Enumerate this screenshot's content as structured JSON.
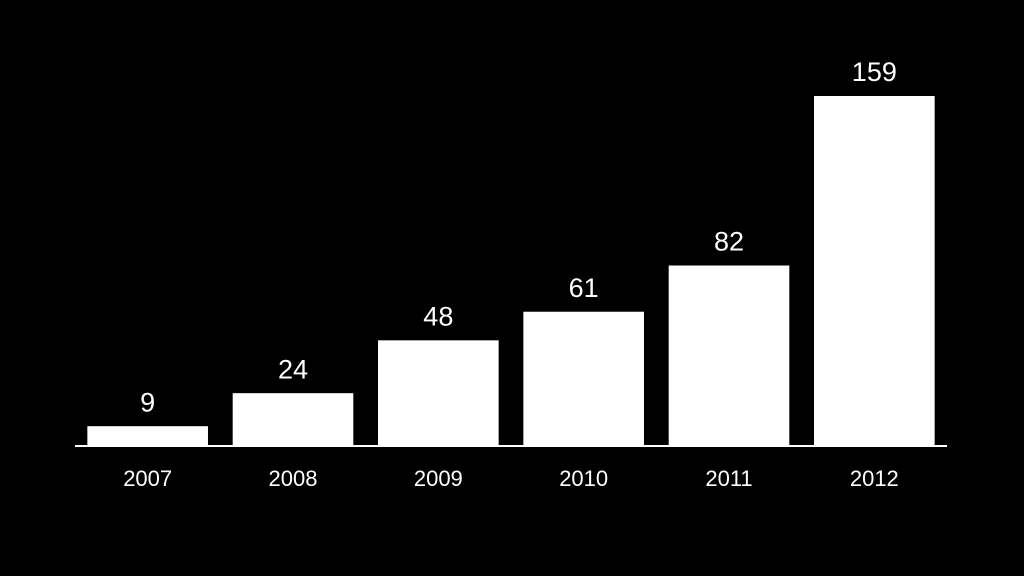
{
  "chart_data": {
    "type": "bar",
    "categories": [
      "2007",
      "2008",
      "2009",
      "2010",
      "2011",
      "2012"
    ],
    "values": [
      9,
      24,
      48,
      61,
      82,
      159
    ],
    "color": "#ffffff"
  }
}
